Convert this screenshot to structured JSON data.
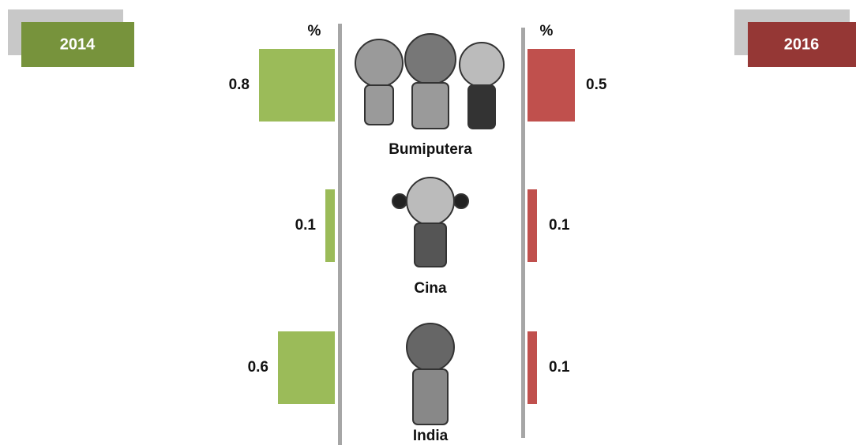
{
  "chart_data": {
    "type": "butterfly-bar",
    "left_axis_label": "%",
    "right_axis_label": "%",
    "categories": [
      "Bumiputera",
      "Cina",
      "India"
    ],
    "series": [
      {
        "name": "2014",
        "color": "#9bbb59",
        "legend_color": "#77933c",
        "values": [
          0.8,
          0.1,
          0.6
        ]
      },
      {
        "name": "2016",
        "color": "#c0504d",
        "legend_color": "#953735",
        "values": [
          0.5,
          0.1,
          0.1
        ]
      }
    ]
  }
}
